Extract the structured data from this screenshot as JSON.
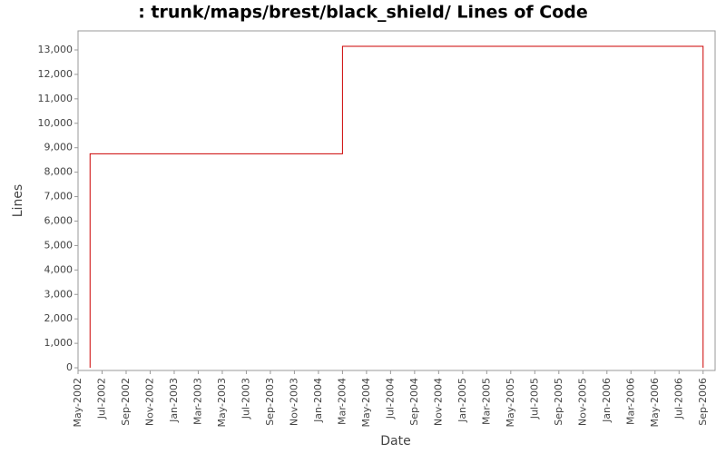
{
  "chart_data": {
    "type": "line",
    "title": ": trunk/maps/brest/black_shield/ Lines of Code",
    "x_label": "Date",
    "y_label": "Lines",
    "x": [
      "2002-06",
      "2002-06",
      "2004-03",
      "2004-03",
      "2006-09",
      "2006-09"
    ],
    "series": [
      {
        "name": "Lines",
        "color": "#cc0000",
        "values": [
          0,
          8750,
          8750,
          13150,
          13150,
          0
        ]
      }
    ],
    "xlim": [
      "2002-05",
      "2006-10"
    ],
    "xticks": [
      {
        "value": "2002-05",
        "label": "May-2002"
      },
      {
        "value": "2002-07",
        "label": "Jul-2002"
      },
      {
        "value": "2002-09",
        "label": "Sep-2002"
      },
      {
        "value": "2002-11",
        "label": "Nov-2002"
      },
      {
        "value": "2003-01",
        "label": "Jan-2003"
      },
      {
        "value": "2003-03",
        "label": "Mar-2003"
      },
      {
        "value": "2003-05",
        "label": "May-2003"
      },
      {
        "value": "2003-07",
        "label": "Jul-2003"
      },
      {
        "value": "2003-09",
        "label": "Sep-2003"
      },
      {
        "value": "2003-11",
        "label": "Nov-2003"
      },
      {
        "value": "2004-01",
        "label": "Jan-2004"
      },
      {
        "value": "2004-03",
        "label": "Mar-2004"
      },
      {
        "value": "2004-05",
        "label": "May-2004"
      },
      {
        "value": "2004-07",
        "label": "Jul-2004"
      },
      {
        "value": "2004-09",
        "label": "Sep-2004"
      },
      {
        "value": "2004-11",
        "label": "Nov-2004"
      },
      {
        "value": "2005-01",
        "label": "Jan-2005"
      },
      {
        "value": "2005-03",
        "label": "Mar-2005"
      },
      {
        "value": "2005-05",
        "label": "May-2005"
      },
      {
        "value": "2005-07",
        "label": "Jul-2005"
      },
      {
        "value": "2005-09",
        "label": "Sep-2005"
      },
      {
        "value": "2005-11",
        "label": "Nov-2005"
      },
      {
        "value": "2006-01",
        "label": "Jan-2006"
      },
      {
        "value": "2006-03",
        "label": "Mar-2006"
      },
      {
        "value": "2006-05",
        "label": "May-2006"
      },
      {
        "value": "2006-07",
        "label": "Jul-2006"
      },
      {
        "value": "2006-09",
        "label": "Sep-2006"
      }
    ],
    "ylim": [
      -110,
      13780
    ],
    "yticks": [
      0,
      {
        "value": 1000,
        "label": "1,000"
      },
      {
        "value": 2000,
        "label": "2,000"
      },
      {
        "value": 3000,
        "label": "3,000"
      },
      {
        "value": 4000,
        "label": "4,000"
      },
      {
        "value": 5000,
        "label": "5,000"
      },
      {
        "value": 6000,
        "label": "6,000"
      },
      {
        "value": 7000,
        "label": "7,000"
      },
      {
        "value": 8000,
        "label": "8,000"
      },
      {
        "value": 9000,
        "label": "9,000"
      },
      {
        "value": 10000,
        "label": "10,000"
      },
      {
        "value": 11000,
        "label": "11,000"
      },
      {
        "value": 12000,
        "label": "12,000"
      },
      {
        "value": 13000,
        "label": "13,000"
      }
    ],
    "grid": false
  }
}
